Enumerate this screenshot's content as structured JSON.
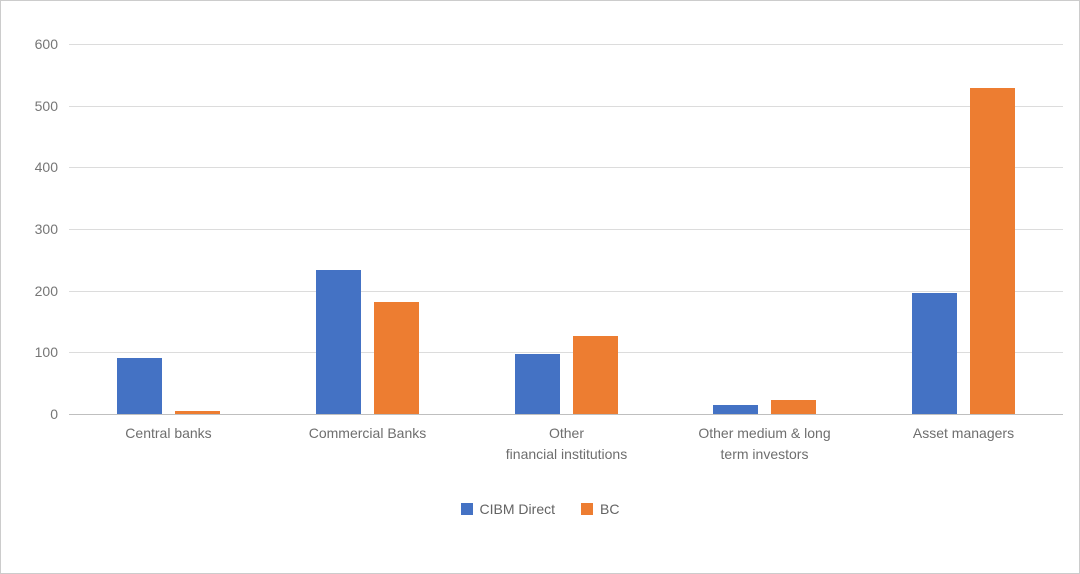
{
  "chart_data": {
    "type": "bar",
    "title": "",
    "xlabel": "",
    "ylabel": "",
    "categories": [
      "Central banks",
      "Commercial Banks",
      "Other financial institutions",
      "Other medium & long term investors",
      "Asset managers"
    ],
    "category_label_lines": [
      [
        "Central banks"
      ],
      [
        "Commercial Banks"
      ],
      [
        "Other",
        "financial institutions"
      ],
      [
        "Other medium & long",
        "term investors"
      ],
      [
        "Asset managers"
      ]
    ],
    "series": [
      {
        "name": "CIBM Direct",
        "color": "#4472C4",
        "values": [
          90,
          234,
          97,
          14,
          197
        ]
      },
      {
        "name": "BC",
        "color": "#ED7D31",
        "values": [
          5,
          181,
          127,
          22,
          529
        ]
      }
    ],
    "ylim": [
      0,
      600
    ],
    "yticks": [
      0,
      100,
      200,
      300,
      400,
      500,
      600
    ],
    "ytick_labels": [
      "0",
      "100",
      "200",
      "300",
      "400",
      "500",
      "600"
    ],
    "grid": true,
    "legend_position": "bottom"
  },
  "colors": {
    "series_blue": "#4472C4",
    "series_orange": "#ED7D31",
    "gridline": "#DCDCDC",
    "axis_line": "#BFBFBF",
    "tick_text": "#767676",
    "category_text": "#6E6E6E",
    "legend_text": "#636363",
    "background": "#FFFFFF",
    "frame_border": "#CCCCCC"
  }
}
